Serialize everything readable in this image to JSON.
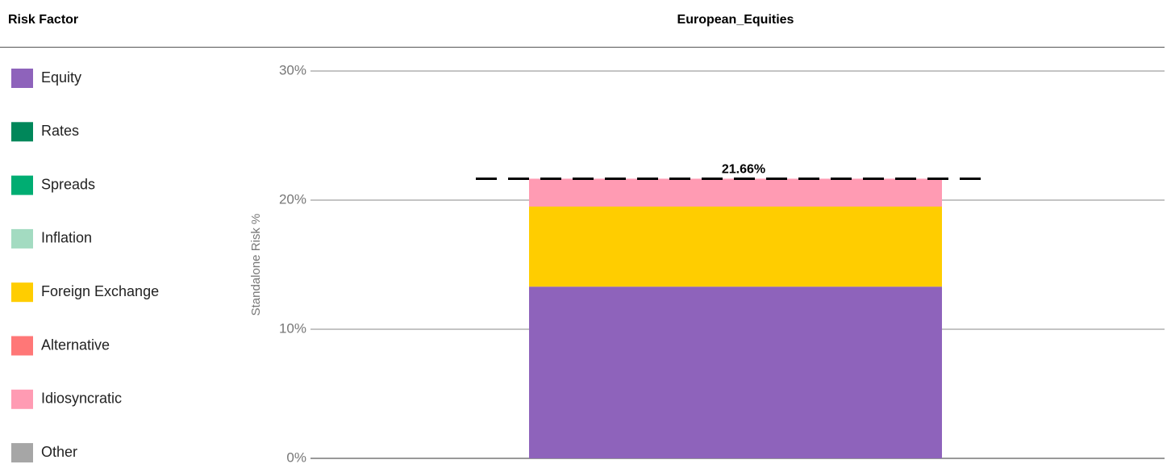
{
  "chart_data": {
    "type": "bar",
    "stacked": true,
    "legend_title": "Risk Factor",
    "categories": [
      "European_Equities"
    ],
    "y_label": "Standalone Risk %",
    "series": [
      {
        "name": "Equity",
        "color": "#8e63bb",
        "values": [
          13.3
        ]
      },
      {
        "name": "Rates",
        "color": "#00875a",
        "values": [
          0
        ]
      },
      {
        "name": "Spreads",
        "color": "#00ad72",
        "values": [
          0
        ]
      },
      {
        "name": "Inflation",
        "color": "#a3dbc1",
        "values": [
          0
        ]
      },
      {
        "name": "Foreign Exchange",
        "color": "#ffcd00",
        "values": [
          6.2
        ]
      },
      {
        "name": "Alternative",
        "color": "#ff7777",
        "values": [
          0
        ]
      },
      {
        "name": "Idiosyncratic",
        "color": "#ff9bb3",
        "values": [
          2.16
        ]
      },
      {
        "name": "Other",
        "color": "#a6a6a6",
        "values": [
          0
        ]
      }
    ],
    "total": {
      "value": 21.66,
      "label": "21.66%"
    },
    "ylim": [
      0,
      30
    ],
    "yticks": [
      {
        "value": 0,
        "label": "0%"
      },
      {
        "value": 10,
        "label": "10%"
      },
      {
        "value": 20,
        "label": "20%"
      },
      {
        "value": 30,
        "label": "30%"
      }
    ],
    "grid": true
  }
}
